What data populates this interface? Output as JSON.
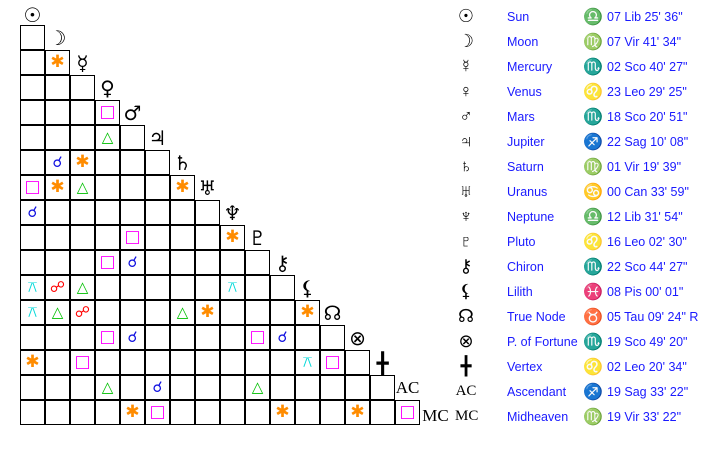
{
  "bodies": [
    {
      "name": "Sun",
      "glyph": "☉",
      "icon": "sun-icon",
      "sign_glyph": "♎",
      "sign_icon": "libra-icon",
      "position": "07 Lib 25' 36\""
    },
    {
      "name": "Moon",
      "glyph": "☽",
      "icon": "moon-icon",
      "sign_glyph": "♍",
      "sign_icon": "virgo-icon",
      "position": "07 Vir 41' 34\""
    },
    {
      "name": "Mercury",
      "glyph": "☿",
      "icon": "mercury-icon",
      "sign_glyph": "♏",
      "sign_icon": "scorpio-icon",
      "position": "02 Sco 40' 27\""
    },
    {
      "name": "Venus",
      "glyph": "♀",
      "icon": "venus-icon",
      "sign_glyph": "♌",
      "sign_icon": "leo-icon",
      "position": "23 Leo 29' 25\""
    },
    {
      "name": "Mars",
      "glyph": "♂",
      "icon": "mars-icon",
      "sign_glyph": "♏",
      "sign_icon": "scorpio-icon",
      "position": "18 Sco 20' 51\""
    },
    {
      "name": "Jupiter",
      "glyph": "♃",
      "icon": "jupiter-icon",
      "sign_glyph": "♐",
      "sign_icon": "sagittarius-icon",
      "position": "22 Sag 10' 08\""
    },
    {
      "name": "Saturn",
      "glyph": "♄",
      "icon": "saturn-icon",
      "sign_glyph": "♍",
      "sign_icon": "virgo-icon",
      "position": "01 Vir 19' 39\""
    },
    {
      "name": "Uranus",
      "glyph": "♅",
      "icon": "uranus-icon",
      "sign_glyph": "♋",
      "sign_icon": "cancer-icon",
      "position": "00 Can 33' 59\""
    },
    {
      "name": "Neptune",
      "glyph": "♆",
      "icon": "neptune-icon",
      "sign_glyph": "♎",
      "sign_icon": "libra-icon",
      "position": "12 Lib 31' 54\""
    },
    {
      "name": "Pluto",
      "glyph": "♇",
      "icon": "pluto-icon",
      "sign_glyph": "♌",
      "sign_icon": "leo-icon",
      "position": "16 Leo 02' 30\""
    },
    {
      "name": "Chiron",
      "glyph": "⚷",
      "icon": "chiron-icon",
      "sign_glyph": "♏",
      "sign_icon": "scorpio-icon",
      "position": "22 Sco 44' 27\""
    },
    {
      "name": "Lilith",
      "glyph": "⚸",
      "icon": "lilith-icon",
      "sign_glyph": "♓",
      "sign_icon": "pisces-icon",
      "position": "08 Pis 00' 01\""
    },
    {
      "name": "True Node",
      "glyph": "☊",
      "icon": "true-node-icon",
      "sign_glyph": "♉",
      "sign_icon": "taurus-icon",
      "position": "05 Tau 09' 24\" R"
    },
    {
      "name": "P. of Fortune",
      "glyph": "⊗",
      "icon": "part-of-fortune-icon",
      "sign_glyph": "♏",
      "sign_icon": "scorpio-icon",
      "position": "19 Sco 49' 20\""
    },
    {
      "name": "Vertex",
      "glyph": "╋",
      "icon": "vertex-icon",
      "sign_glyph": "♌",
      "sign_icon": "leo-icon",
      "position": "02 Leo 20' 34\""
    },
    {
      "name": "Ascendant",
      "glyph": "AC",
      "icon": "ascendant-label",
      "sign_glyph": "♐",
      "sign_icon": "sagittarius-icon",
      "position": "19 Sag 33' 22\""
    },
    {
      "name": "Midheaven",
      "glyph": "MC",
      "icon": "midheaven-label",
      "sign_glyph": "♍",
      "sign_icon": "virgo-icon",
      "position": "19 Vir 33' 22\""
    }
  ],
  "aspect_types": {
    "conjunction": {
      "glyph": "☌",
      "color": "#1010e0"
    },
    "sextile": {
      "glyph": "✱",
      "color": "#ff8c00"
    },
    "square": {
      "glyph": "□",
      "color": "#ff00ff"
    },
    "trine": {
      "glyph": "△",
      "color": "#00c000"
    },
    "opposition": {
      "glyph": "☍",
      "color": "#ff0000"
    },
    "quincunx": {
      "glyph": "⚻",
      "color": "#00d8d8"
    }
  },
  "aspects": [
    {
      "a": "Mercury",
      "b": "Moon",
      "type": "sextile"
    },
    {
      "a": "Mars",
      "b": "Venus",
      "type": "square"
    },
    {
      "a": "Jupiter",
      "b": "Venus",
      "type": "trine"
    },
    {
      "a": "Saturn",
      "b": "Moon",
      "type": "conjunction"
    },
    {
      "a": "Saturn",
      "b": "Mercury",
      "type": "sextile"
    },
    {
      "a": "Uranus",
      "b": "Sun",
      "type": "square"
    },
    {
      "a": "Uranus",
      "b": "Moon",
      "type": "sextile"
    },
    {
      "a": "Uranus",
      "b": "Mercury",
      "type": "trine"
    },
    {
      "a": "Uranus",
      "b": "Saturn",
      "type": "sextile"
    },
    {
      "a": "Neptune",
      "b": "Sun",
      "type": "conjunction"
    },
    {
      "a": "Pluto",
      "b": "Mars",
      "type": "square"
    },
    {
      "a": "Pluto",
      "b": "Neptune",
      "type": "sextile"
    },
    {
      "a": "Chiron",
      "b": "Venus",
      "type": "square"
    },
    {
      "a": "Chiron",
      "b": "Mars",
      "type": "conjunction"
    },
    {
      "a": "Lilith",
      "b": "Sun",
      "type": "quincunx"
    },
    {
      "a": "Lilith",
      "b": "Moon",
      "type": "opposition"
    },
    {
      "a": "Lilith",
      "b": "Mercury",
      "type": "trine"
    },
    {
      "a": "Lilith",
      "b": "Neptune",
      "type": "quincunx"
    },
    {
      "a": "True Node",
      "b": "Sun",
      "type": "quincunx"
    },
    {
      "a": "True Node",
      "b": "Moon",
      "type": "trine"
    },
    {
      "a": "True Node",
      "b": "Mercury",
      "type": "opposition"
    },
    {
      "a": "True Node",
      "b": "Saturn",
      "type": "trine"
    },
    {
      "a": "True Node",
      "b": "Uranus",
      "type": "sextile"
    },
    {
      "a": "True Node",
      "b": "Lilith",
      "type": "sextile"
    },
    {
      "a": "P. of Fortune",
      "b": "Venus",
      "type": "square"
    },
    {
      "a": "P. of Fortune",
      "b": "Mars",
      "type": "conjunction"
    },
    {
      "a": "P. of Fortune",
      "b": "Pluto",
      "type": "square"
    },
    {
      "a": "P. of Fortune",
      "b": "Chiron",
      "type": "conjunction"
    },
    {
      "a": "Vertex",
      "b": "Sun",
      "type": "sextile"
    },
    {
      "a": "Vertex",
      "b": "Mercury",
      "type": "square"
    },
    {
      "a": "Vertex",
      "b": "Lilith",
      "type": "quincunx"
    },
    {
      "a": "Vertex",
      "b": "True Node",
      "type": "square"
    },
    {
      "a": "Ascendant",
      "b": "Venus",
      "type": "trine"
    },
    {
      "a": "Ascendant",
      "b": "Jupiter",
      "type": "conjunction"
    },
    {
      "a": "Ascendant",
      "b": "Pluto",
      "type": "trine"
    },
    {
      "a": "Midheaven",
      "b": "Mars",
      "type": "sextile"
    },
    {
      "a": "Midheaven",
      "b": "Jupiter",
      "type": "square"
    },
    {
      "a": "Midheaven",
      "b": "Chiron",
      "type": "sextile"
    },
    {
      "a": "Midheaven",
      "b": "P. of Fortune",
      "type": "sextile"
    },
    {
      "a": "Midheaven",
      "b": "Ascendant",
      "type": "square"
    }
  ]
}
